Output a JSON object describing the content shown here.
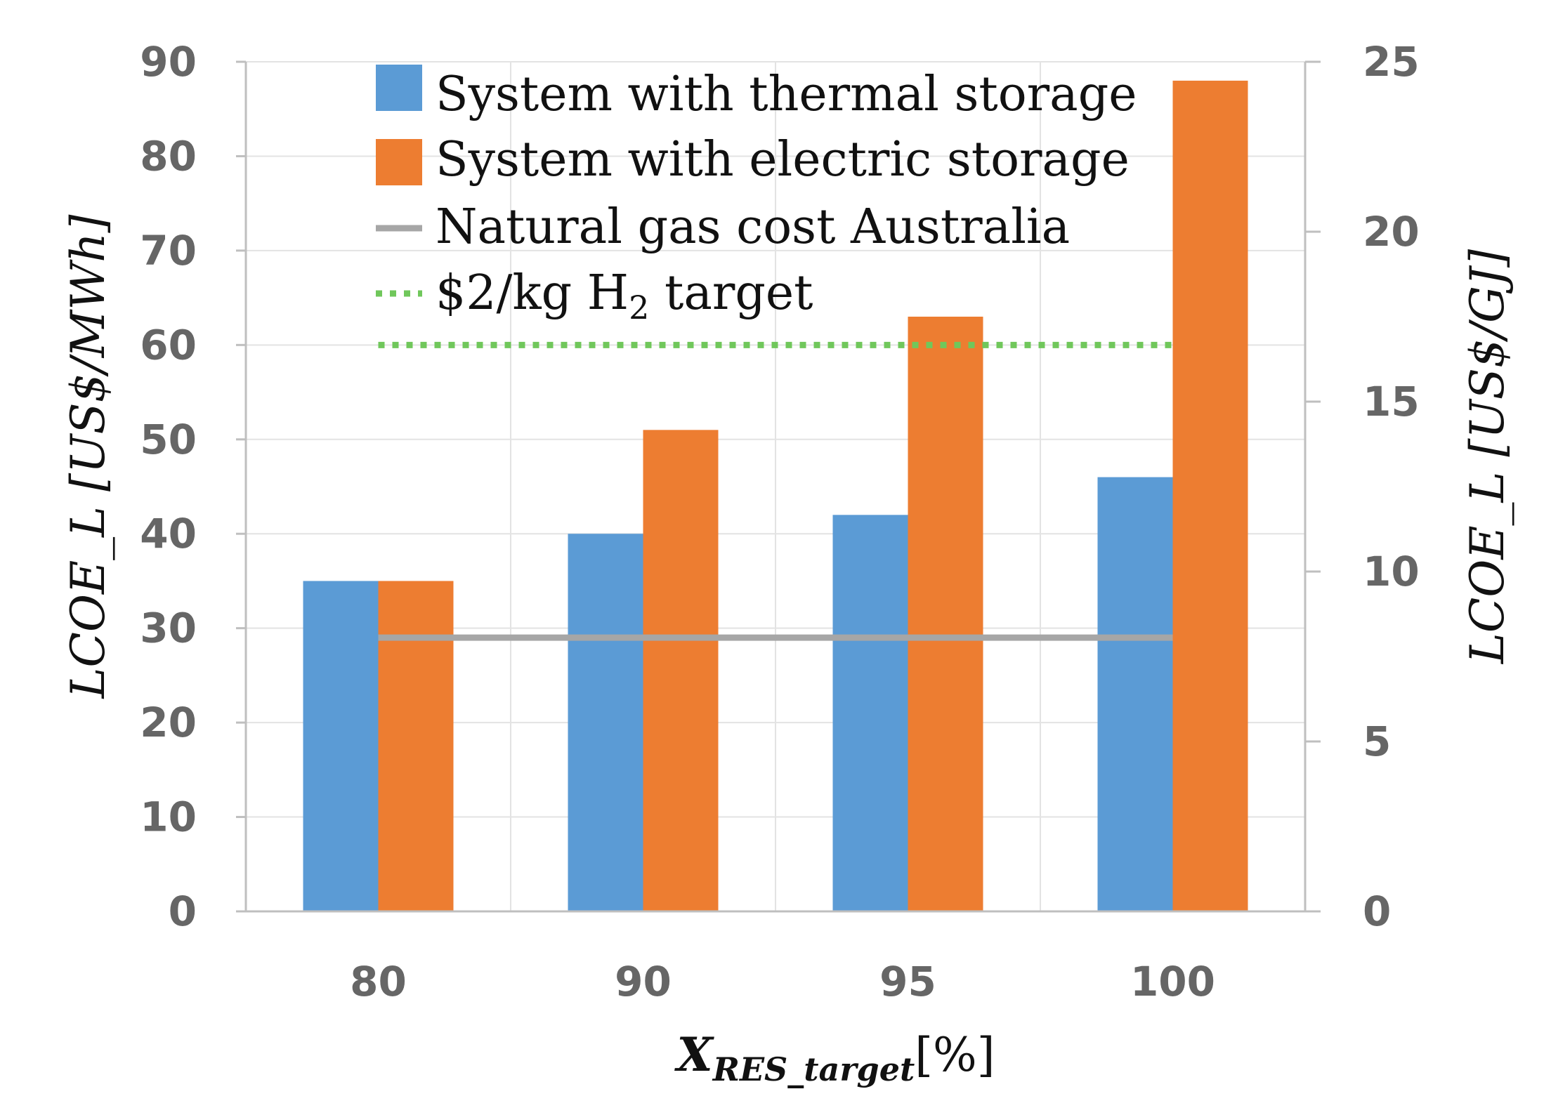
{
  "chart_data": {
    "type": "bar",
    "categories": [
      "80",
      "90",
      "95",
      "100"
    ],
    "series": [
      {
        "name": "System with thermal storage",
        "values": [
          35,
          40,
          42,
          46
        ],
        "color": "#5b9bd5"
      },
      {
        "name": "System with electric storage",
        "values": [
          35,
          51,
          63,
          88
        ],
        "color": "#ed7d31"
      }
    ],
    "reference_lines": [
      {
        "name": "Natural gas cost Australia",
        "value": 29,
        "color": "#a6a6a6",
        "style": "solid"
      },
      {
        "name": "$2/kg H₂ target",
        "value": 60,
        "color": "#70c75b",
        "style": "dotted"
      }
    ],
    "ylim": [
      0,
      90
    ],
    "yticks": [
      "0",
      "10",
      "20",
      "30",
      "40",
      "50",
      "60",
      "70",
      "80",
      "90"
    ],
    "y2lim": [
      0,
      25
    ],
    "y2ticks": [
      "0",
      "5",
      "10",
      "15",
      "20",
      "25"
    ],
    "ylabel": "LCOE_L [US$/MWh]",
    "y2label": "LCOE_L [US$/GJ]",
    "xlabel_main": "X",
    "xlabel_sub": "RES_target",
    "xlabel_unit": "[%]",
    "legend": {
      "thermal": "System with thermal storage",
      "electric": "System with electric storage",
      "gas": "Natural gas cost Australia",
      "h2_prefix": "$2/kg H",
      "h2_sub": "2",
      "h2_suffix": " target"
    },
    "grid": true,
    "legend_position": "top-left"
  }
}
